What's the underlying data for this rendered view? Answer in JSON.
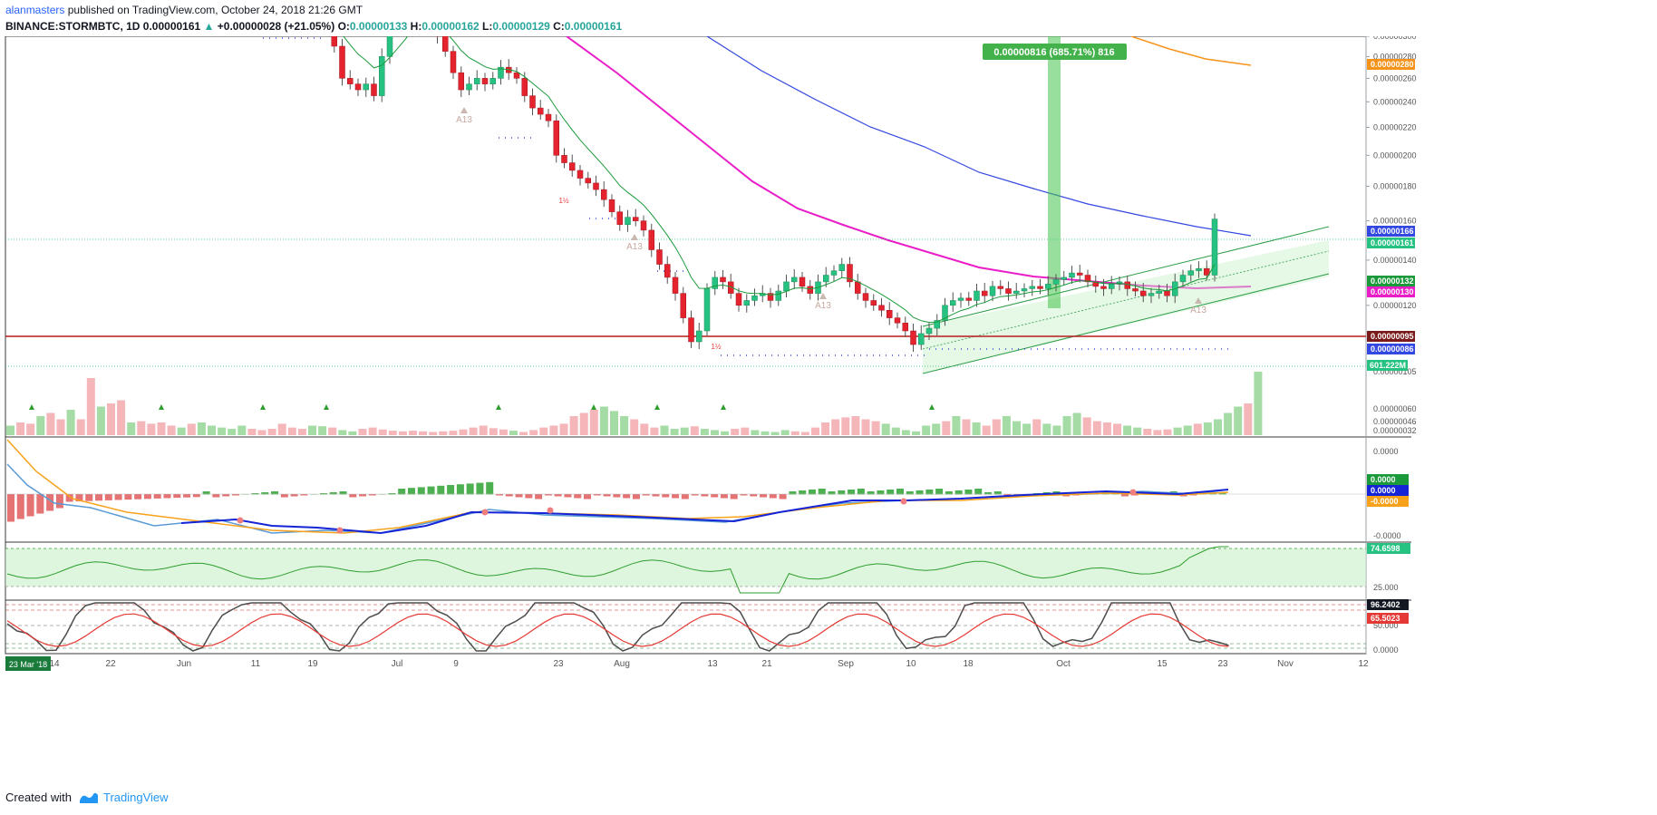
{
  "header": {
    "publisher": "alanmasters",
    "published_text": "published on TradingView.com, October 24, 2018 21:26 GMT",
    "symbol": "BINANCE:STORMBTC, 1D",
    "price": "0.00000161",
    "change": "+0.00000028 (+21.05%)",
    "ohlc": {
      "O": "0.00000133",
      "H": "0.00000162",
      "L": "0.00000129",
      "C": "0.00000161"
    }
  },
  "footer": {
    "created_with": "Created with",
    "brand": "TradingView"
  },
  "colors": {
    "up": "#26c281",
    "down": "#e5232f",
    "ema_green": "#1a9a3a",
    "ma_magenta": "#e91ec8",
    "ma_blue": "#3348e0",
    "ma_orange": "#f7931a",
    "support": "#b71c1c",
    "channel": "#2e9e4a",
    "measure": "#43c24b",
    "macd_fast": "#1524d6",
    "macd_slow": "#f7a21a",
    "rsi": "#2e9e2e",
    "stoch_k": "#4d4d4d",
    "stoch_d": "#e53935"
  },
  "chart_data": [
    {
      "type": "candlestick",
      "panel": "price",
      "y_scale": [
        3e-07,
        3e-06
      ],
      "y_scale_type": "log",
      "y_ticks": [
        "0.00000300",
        "0.00000280",
        "0.00000260",
        "0.00000240",
        "0.00000220",
        "0.00000200",
        "0.00000180",
        "0.00000160",
        "0.00000140",
        "0.00000120",
        "0.00000105",
        "0.00000060",
        "0.00000046",
        "0.00000032"
      ],
      "x_ticks": [
        "14",
        "22",
        "Jun",
        "11",
        "19",
        "Jul",
        "9",
        "23",
        "Aug",
        "13",
        "21",
        "Sep",
        "10",
        "18",
        "Oct",
        "15",
        "23",
        "Nov",
        "12"
      ],
      "x_range": [
        "2018-05-12",
        "2018-11-14"
      ],
      "closes": [
        null,
        null,
        null,
        null,
        null,
        null,
        null,
        null,
        null,
        null,
        null,
        null,
        3.2,
        2.9,
        2.6,
        2.55,
        2.5,
        2.55,
        2.45,
        2.8,
        3.05,
        3.2,
        3.3,
        3.5,
        3.3,
        3.1,
        3.0,
        2.85,
        2.65,
        2.5,
        2.55,
        2.6,
        2.55,
        2.6,
        2.7,
        2.65,
        2.6,
        2.45,
        2.35,
        2.3,
        2.25,
        2.0,
        1.95,
        1.9,
        1.85,
        1.82,
        1.78,
        1.72,
        1.65,
        1.58,
        1.62,
        1.6,
        1.55,
        1.45,
        1.38,
        1.32,
        1.25,
        1.15,
        1.06,
        1.1,
        1.27,
        1.32,
        1.3,
        1.25,
        1.2,
        1.22,
        1.24,
        1.25,
        1.22,
        1.26,
        1.3,
        1.32,
        1.28,
        1.25,
        1.3,
        1.33,
        1.35,
        1.38,
        1.3,
        1.25,
        1.22,
        1.2,
        1.18,
        1.15,
        1.13,
        1.1,
        1.05,
        1.09,
        1.11,
        1.14,
        1.2,
        1.22,
        1.23,
        1.22,
        1.26,
        1.24,
        1.28,
        1.27,
        1.25,
        1.26,
        1.27,
        1.28,
        1.27,
        1.29,
        1.31,
        1.32,
        1.34,
        1.33,
        1.3,
        1.28,
        1.27,
        1.29,
        1.3,
        1.27,
        1.26,
        1.24,
        1.25,
        1.26,
        1.24,
        1.3,
        1.33,
        1.35,
        1.36,
        1.33,
        1.61
      ],
      "annotations": [
        "A13",
        "A13",
        "A13",
        "A13",
        "1½",
        "1½"
      ],
      "price_labels": [
        {
          "text": "0.00000280",
          "color": "#f7931a",
          "value": 2.8e-06
        },
        {
          "text": "0.00000166",
          "color": "#3348e0",
          "value": 1.66e-06
        },
        {
          "text": "0.00000161",
          "color": "#26c281",
          "value": 1.61e-06
        },
        {
          "text": "0.00000132",
          "color": "#1a9a3a",
          "value": 1.32e-06
        },
        {
          "text": "0.00000130",
          "color": "#e91ec8",
          "value": 1.3e-06
        },
        {
          "text": "0.00000095",
          "color": "#7a1a1a",
          "value": 9.5e-07
        },
        {
          "text": "0.00000086",
          "color": "#3348e0",
          "value": 8.6e-07
        }
      ],
      "measure": {
        "text": "0.00000816 (685.71%) 816",
        "value": 8.16e-06,
        "percent": 685.71,
        "bars": 816
      },
      "volume_label": "601.222M"
    },
    {
      "type": "bar",
      "panel": "volume",
      "values": [
        0.15,
        0.2,
        0.18,
        0.3,
        0.35,
        0.25,
        0.4,
        0.25,
        0.9,
        0.45,
        0.5,
        0.55,
        0.2,
        0.22,
        0.18,
        0.2,
        0.15,
        0.12,
        0.18,
        0.2,
        0.15,
        0.12,
        0.1,
        0.15,
        0.1,
        0.08,
        0.1,
        0.18,
        0.12,
        0.1,
        0.15,
        0.14,
        0.12,
        0.08,
        0.06,
        0.1,
        0.12,
        0.09,
        0.07,
        0.06,
        0.07,
        0.06,
        0.05,
        0.06,
        0.07,
        0.09,
        0.12,
        0.15,
        0.11,
        0.09,
        0.07,
        0.05,
        0.08,
        0.12,
        0.15,
        0.18,
        0.3,
        0.35,
        0.4,
        0.45,
        0.38,
        0.3,
        0.25,
        0.18,
        0.12,
        0.15,
        0.1,
        0.12,
        0.14,
        0.1,
        0.08,
        0.06,
        0.1,
        0.12,
        0.08,
        0.06,
        0.05,
        0.08,
        0.06,
        0.05,
        0.12,
        0.2,
        0.25,
        0.28,
        0.3,
        0.25,
        0.22,
        0.18,
        0.12,
        0.08,
        0.06,
        0.15,
        0.18,
        0.22,
        0.3,
        0.25,
        0.2,
        0.15,
        0.25,
        0.3,
        0.22,
        0.18,
        0.25,
        0.18,
        0.15,
        0.3,
        0.35,
        0.28,
        0.22,
        0.2,
        0.18,
        0.15,
        0.12,
        0.1,
        0.08,
        0.09,
        0.12,
        0.15,
        0.18,
        0.2,
        0.25,
        0.35,
        0.45,
        0.5,
        1.0
      ],
      "y_ticks": [
        "0.00000060",
        "0.00000046",
        "0.00000032"
      ]
    },
    {
      "type": "line",
      "panel": "macd",
      "y_ticks": [
        "0.0000",
        "-0.0000"
      ],
      "value_labels": [
        "0.0000",
        "0.0000",
        "-0.0000"
      ]
    },
    {
      "type": "line",
      "panel": "rsi",
      "y_ticks": [
        "25.000"
      ],
      "value_label": "74.6598"
    },
    {
      "type": "line",
      "panel": "stoch",
      "y_ticks": [
        "50.000",
        "0.0000"
      ],
      "value_labels": [
        "96.2402",
        "65.5023"
      ]
    }
  ],
  "date_tag": "23 Mar '18"
}
